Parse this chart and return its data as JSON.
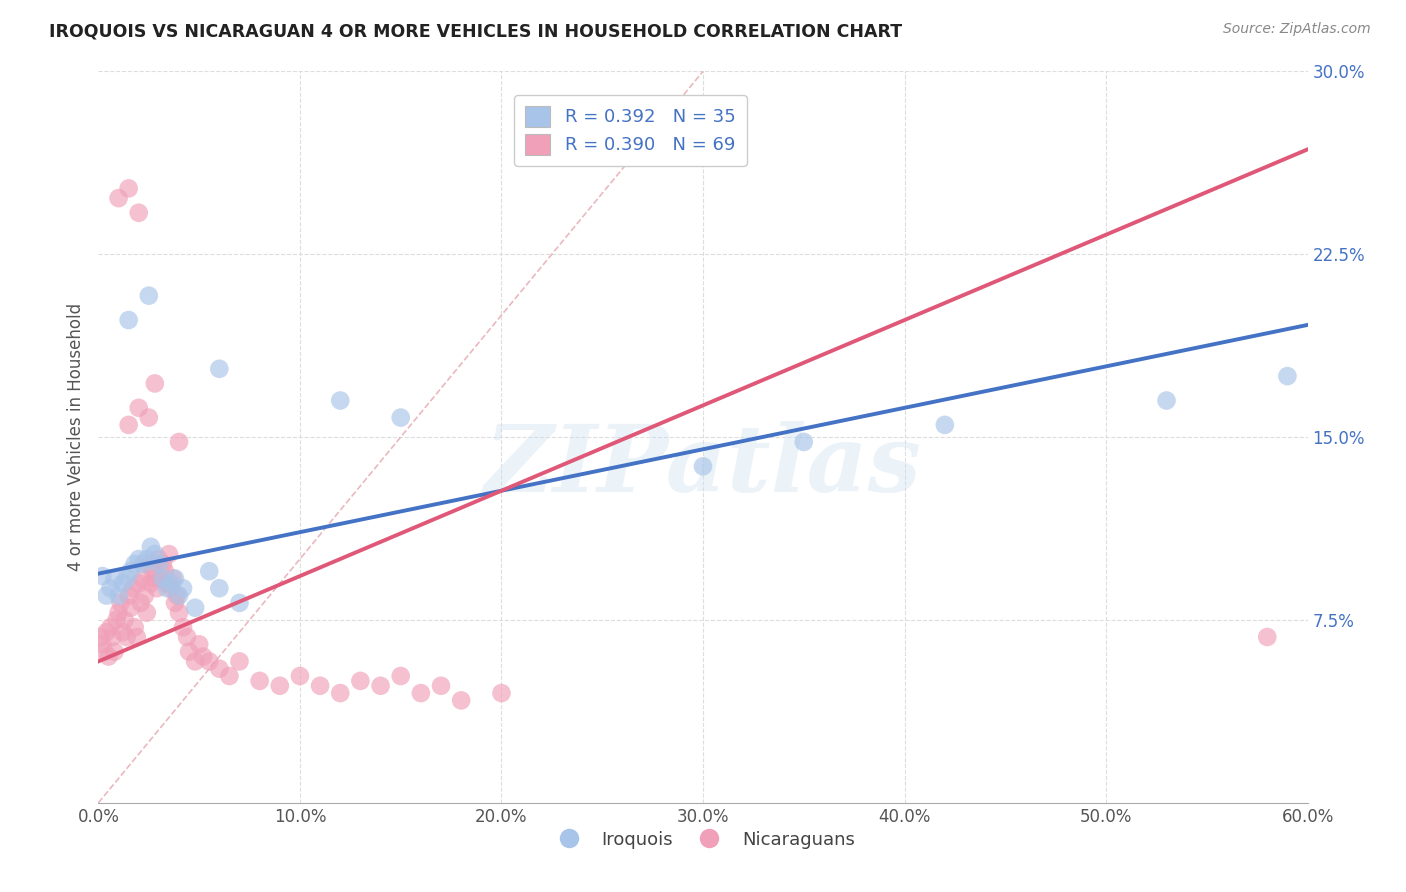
{
  "title": "IROQUOIS VS NICARAGUAN 4 OR MORE VEHICLES IN HOUSEHOLD CORRELATION CHART",
  "source": "Source: ZipAtlas.com",
  "ylabel": "4 or more Vehicles in Household",
  "xlim": [
    0.0,
    0.6
  ],
  "ylim": [
    0.0,
    0.3
  ],
  "xticks": [
    0.0,
    0.1,
    0.2,
    0.3,
    0.4,
    0.5,
    0.6
  ],
  "yticks": [
    0.0,
    0.075,
    0.15,
    0.225,
    0.3
  ],
  "xtick_labels": [
    "0.0%",
    "10.0%",
    "20.0%",
    "30.0%",
    "40.0%",
    "50.0%",
    "60.0%"
  ],
  "ytick_labels": [
    "",
    "7.5%",
    "15.0%",
    "22.5%",
    "30.0%"
  ],
  "iroquois_color": "#a8c4e8",
  "nicaraguan_color": "#f0a0b8",
  "trend_iroquois_color": "#4472c4",
  "trend_nicaraguan_color": "#e05878",
  "diagonal_color": "#d0a0a8",
  "background_color": "#ffffff",
  "watermark": "ZIPatlas",
  "iroquois_points": [
    [
      0.002,
      0.093
    ],
    [
      0.004,
      0.085
    ],
    [
      0.006,
      0.088
    ],
    [
      0.008,
      0.092
    ],
    [
      0.01,
      0.085
    ],
    [
      0.012,
      0.09
    ],
    [
      0.014,
      0.092
    ],
    [
      0.016,
      0.095
    ],
    [
      0.018,
      0.098
    ],
    [
      0.02,
      0.1
    ],
    [
      0.022,
      0.098
    ],
    [
      0.024,
      0.1
    ],
    [
      0.026,
      0.105
    ],
    [
      0.028,
      0.102
    ],
    [
      0.03,
      0.098
    ],
    [
      0.032,
      0.092
    ],
    [
      0.034,
      0.088
    ],
    [
      0.036,
      0.09
    ],
    [
      0.038,
      0.092
    ],
    [
      0.04,
      0.085
    ],
    [
      0.042,
      0.088
    ],
    [
      0.048,
      0.08
    ],
    [
      0.055,
      0.095
    ],
    [
      0.06,
      0.088
    ],
    [
      0.07,
      0.082
    ],
    [
      0.015,
      0.198
    ],
    [
      0.025,
      0.208
    ],
    [
      0.06,
      0.178
    ],
    [
      0.12,
      0.165
    ],
    [
      0.15,
      0.158
    ],
    [
      0.3,
      0.138
    ],
    [
      0.35,
      0.148
    ],
    [
      0.42,
      0.155
    ],
    [
      0.53,
      0.165
    ],
    [
      0.59,
      0.175
    ]
  ],
  "nicaraguan_points": [
    [
      0.001,
      0.068
    ],
    [
      0.002,
      0.065
    ],
    [
      0.003,
      0.062
    ],
    [
      0.004,
      0.07
    ],
    [
      0.005,
      0.06
    ],
    [
      0.006,
      0.072
    ],
    [
      0.007,
      0.068
    ],
    [
      0.008,
      0.062
    ],
    [
      0.009,
      0.075
    ],
    [
      0.01,
      0.078
    ],
    [
      0.011,
      0.082
    ],
    [
      0.012,
      0.07
    ],
    [
      0.013,
      0.075
    ],
    [
      0.014,
      0.068
    ],
    [
      0.015,
      0.085
    ],
    [
      0.016,
      0.08
    ],
    [
      0.017,
      0.088
    ],
    [
      0.018,
      0.072
    ],
    [
      0.019,
      0.068
    ],
    [
      0.02,
      0.09
    ],
    [
      0.021,
      0.082
    ],
    [
      0.022,
      0.092
    ],
    [
      0.023,
      0.085
    ],
    [
      0.024,
      0.078
    ],
    [
      0.025,
      0.098
    ],
    [
      0.026,
      0.09
    ],
    [
      0.027,
      0.095
    ],
    [
      0.028,
      0.092
    ],
    [
      0.029,
      0.088
    ],
    [
      0.03,
      0.1
    ],
    [
      0.031,
      0.092
    ],
    [
      0.032,
      0.098
    ],
    [
      0.033,
      0.095
    ],
    [
      0.034,
      0.09
    ],
    [
      0.035,
      0.102
    ],
    [
      0.036,
      0.088
    ],
    [
      0.037,
      0.092
    ],
    [
      0.038,
      0.082
    ],
    [
      0.039,
      0.085
    ],
    [
      0.04,
      0.078
    ],
    [
      0.042,
      0.072
    ],
    [
      0.044,
      0.068
    ],
    [
      0.045,
      0.062
    ],
    [
      0.048,
      0.058
    ],
    [
      0.05,
      0.065
    ],
    [
      0.052,
      0.06
    ],
    [
      0.055,
      0.058
    ],
    [
      0.06,
      0.055
    ],
    [
      0.065,
      0.052
    ],
    [
      0.07,
      0.058
    ],
    [
      0.08,
      0.05
    ],
    [
      0.09,
      0.048
    ],
    [
      0.1,
      0.052
    ],
    [
      0.11,
      0.048
    ],
    [
      0.12,
      0.045
    ],
    [
      0.13,
      0.05
    ],
    [
      0.14,
      0.048
    ],
    [
      0.15,
      0.052
    ],
    [
      0.16,
      0.045
    ],
    [
      0.17,
      0.048
    ],
    [
      0.18,
      0.042
    ],
    [
      0.2,
      0.045
    ],
    [
      0.015,
      0.155
    ],
    [
      0.02,
      0.162
    ],
    [
      0.025,
      0.158
    ],
    [
      0.028,
      0.172
    ],
    [
      0.04,
      0.148
    ],
    [
      0.01,
      0.248
    ],
    [
      0.015,
      0.252
    ],
    [
      0.02,
      0.242
    ],
    [
      0.58,
      0.068
    ]
  ],
  "trend_iro_x0": 0.0,
  "trend_iro_y0": 0.094,
  "trend_iro_x1": 0.6,
  "trend_iro_y1": 0.196,
  "trend_nic_x0": 0.0,
  "trend_nic_y0": 0.058,
  "trend_nic_x1": 0.6,
  "trend_nic_y1": 0.268
}
